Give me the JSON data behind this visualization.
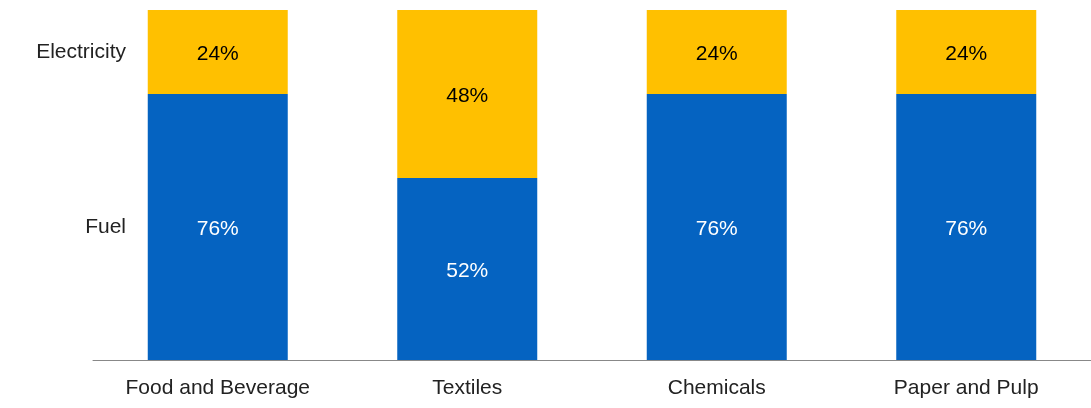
{
  "chart_data": {
    "type": "bar",
    "stacked": true,
    "categories": [
      "Food and Beverage",
      "Textiles",
      "Chemicals",
      "Paper and Pulp"
    ],
    "series": [
      {
        "name": "Fuel",
        "color": "#0563c1",
        "values": [
          76,
          52,
          76,
          76
        ],
        "value_labels": [
          "76%",
          "52%",
          "76%",
          "76%"
        ]
      },
      {
        "name": "Electricity",
        "color": "#ffc000",
        "values": [
          24,
          48,
          24,
          24
        ],
        "value_labels": [
          "24%",
          "48%",
          "24%",
          "24%"
        ]
      }
    ],
    "ylim": [
      0,
      100
    ],
    "tick_labels": "x",
    "legend": false
  }
}
